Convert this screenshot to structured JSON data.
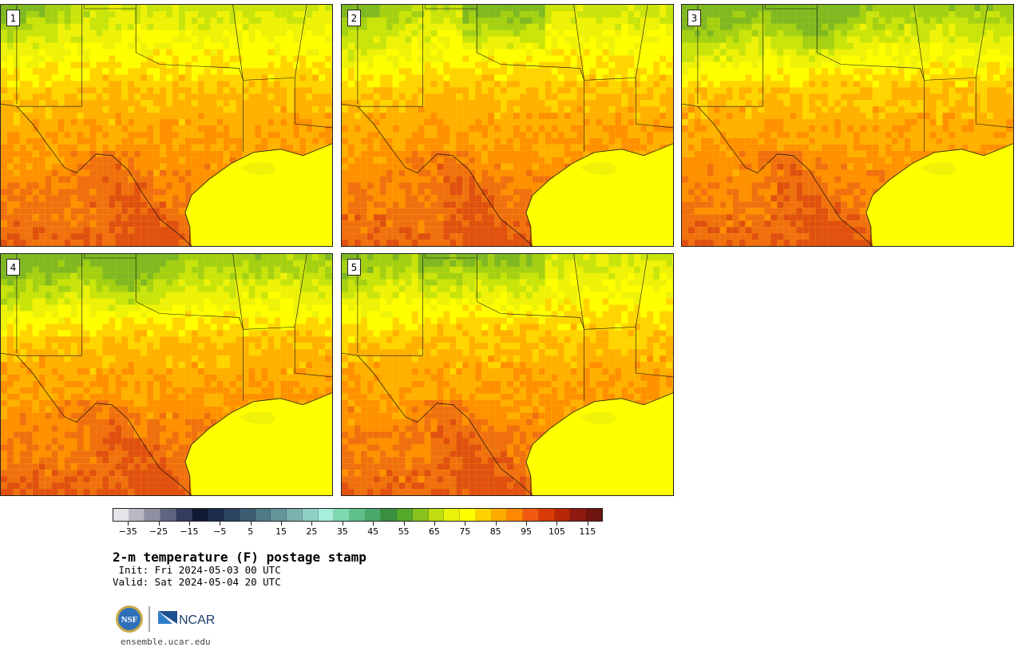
{
  "panels": [
    {
      "id": "1",
      "label": "1",
      "variant": 1
    },
    {
      "id": "2",
      "label": "2",
      "variant": 2
    },
    {
      "id": "3",
      "label": "3",
      "variant": 3
    },
    {
      "id": "4",
      "label": "4",
      "variant": 4
    },
    {
      "id": "5",
      "label": "5",
      "variant": 5
    }
  ],
  "colorbar": {
    "colors": [
      "#e6e6ea",
      "#b9b9c6",
      "#8f8fa2",
      "#5f6580",
      "#343c5c",
      "#111a33",
      "#1a2c4a",
      "#2b4560",
      "#3d5c72",
      "#4f7a86",
      "#64949a",
      "#79b1ae",
      "#8fd0c4",
      "#a6eedb",
      "#7fd8b0",
      "#5fc08a",
      "#4aa86a",
      "#3a9040",
      "#54a82a",
      "#88c21c",
      "#bfdc10",
      "#e8f20a",
      "#ffff00",
      "#ffd200",
      "#ffaa00",
      "#ff8800",
      "#f05a10",
      "#d83a08",
      "#b82808",
      "#901a10",
      "#701510"
    ],
    "tick_labels": [
      "−35",
      "−25",
      "−15",
      "−5",
      "5",
      "15",
      "25",
      "35",
      "45",
      "55",
      "65",
      "75",
      "85",
      "95",
      "105",
      "115"
    ],
    "min": -40,
    "max": 120,
    "step": 5,
    "first_tick": -35,
    "tick_step": 10
  },
  "title": "2-m temperature (F) postage stamp",
  "init": " Init: Fri 2024-05-03 00 UTC",
  "valid": "Valid: Sat 2024-05-04 20 UTC",
  "logos": {
    "left": "NSF",
    "right": "NCAR"
  },
  "site": "ensemble.ucar.edu"
}
